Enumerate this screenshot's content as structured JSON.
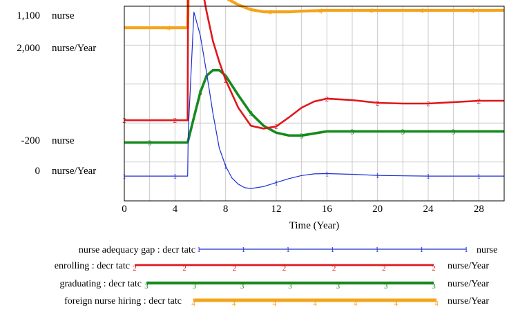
{
  "chart_data": {
    "type": "line",
    "xlabel": "Time (Year)",
    "xlim": [
      0,
      30
    ],
    "x_ticks": [
      "0",
      "4",
      "8",
      "12",
      "16",
      "20",
      "24",
      "28"
    ],
    "left_axis_labels": [
      {
        "value": "1,100",
        "unit": "nurse"
      },
      {
        "value": "2,000",
        "unit": "nurse/Year"
      },
      {
        "value": "-200",
        "unit": "nurse"
      },
      {
        "value": "0",
        "unit": "nurse/Year"
      }
    ],
    "grid": true,
    "legend_placement": "bottom",
    "series": [
      {
        "name": "nurse adequacy gap : decr tatc",
        "unit": "nurse",
        "marker": "1",
        "color": "#1c2fd1",
        "x": [
          0,
          5,
          5.05,
          5.5,
          6,
          6.5,
          7,
          7.5,
          8,
          8.5,
          9,
          9.5,
          10,
          11,
          12,
          13,
          14,
          15,
          16,
          18,
          20,
          22,
          24,
          26,
          28,
          30
        ],
        "y": [
          -122,
          -122,
          200,
          1058,
          890,
          620,
          330,
          80,
          -50,
          -135,
          -180,
          -205,
          -211,
          -197,
          -168,
          -140,
          -118,
          -106,
          -104,
          -109,
          -117,
          -120,
          -122,
          -122,
          -122,
          -122
        ]
      },
      {
        "name": "enrolling : decr tatc",
        "unit": "nurse/Year",
        "marker": "2",
        "color": "#e0161b",
        "x": [
          0,
          5,
          5.05,
          5.5,
          6,
          6.5,
          7,
          7.5,
          8,
          9,
          10,
          11,
          12,
          13,
          14,
          15,
          16,
          18,
          20,
          22,
          24,
          26,
          28,
          30
        ],
        "y": [
          280,
          280,
          1650,
          1520,
          1300,
          1060,
          850,
          700,
          570,
          370,
          240,
          220,
          235,
          300,
          370,
          415,
          435,
          425,
          405,
          400,
          400,
          410,
          420,
          420
        ]
      },
      {
        "name": "graduating : decr tatc",
        "unit": "nurse/Year",
        "marker": "3",
        "color": "#178a1e",
        "x": [
          0,
          5,
          5.5,
          6,
          6.5,
          7,
          7.5,
          8,
          9,
          10,
          11,
          12,
          13,
          14,
          16,
          18,
          20,
          22,
          24,
          26,
          28,
          30
        ],
        "y": [
          120,
          120,
          300,
          480,
          600,
          640,
          640,
          600,
          460,
          330,
          240,
          190,
          170,
          170,
          200,
          200,
          200,
          200,
          200,
          200,
          200,
          200
        ]
      },
      {
        "name": "foreign nurse hiring : decr tatc",
        "unit": "nurse/Year",
        "marker": "4",
        "color": "#f5a41a",
        "x": [
          0,
          5,
          5.05,
          5.5,
          6,
          6.5,
          7,
          8,
          9,
          10,
          11,
          12,
          13,
          14,
          16,
          18,
          20,
          24,
          28,
          30
        ],
        "y": [
          945,
          945,
          1230,
          1310,
          1340,
          1310,
          1250,
          1160,
          1110,
          1075,
          1060,
          1060,
          1060,
          1065,
          1070,
          1070,
          1070,
          1070,
          1070,
          1070
        ]
      }
    ]
  }
}
